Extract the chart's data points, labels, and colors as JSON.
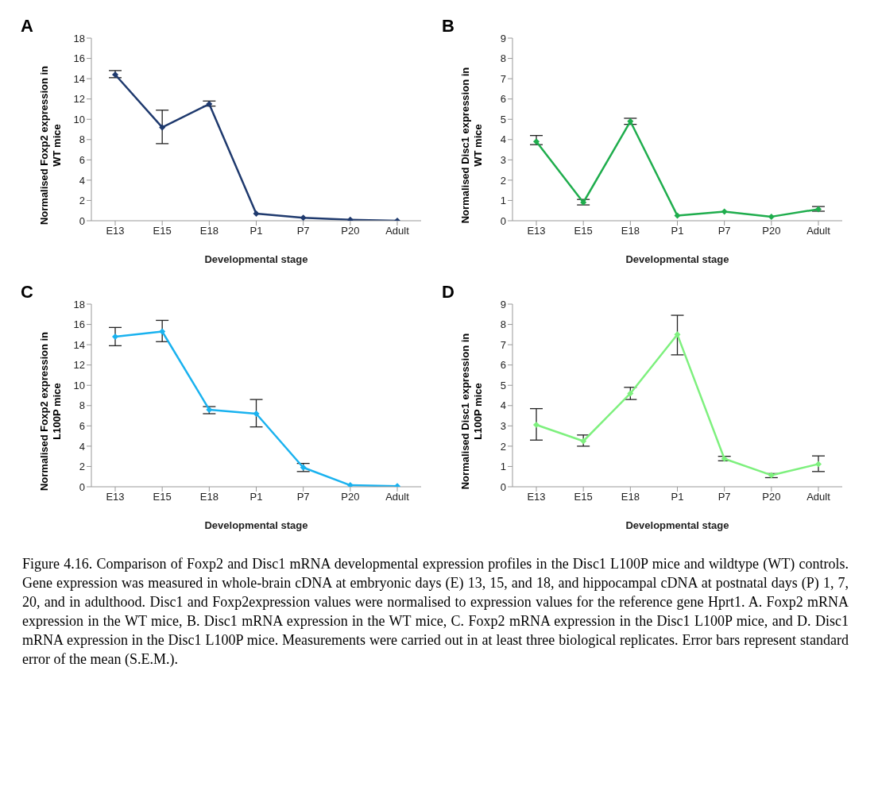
{
  "chart_data": [
    {
      "type": "line",
      "title": "A",
      "xlabel": "Developmental stage",
      "ylabel": "Normalised Foxp2 expression in WT mice",
      "categories": [
        "E13",
        "E15",
        "E18",
        "P1",
        "P7",
        "P20",
        "Adult"
      ],
      "values": [
        14.4,
        9.2,
        11.5,
        0.7,
        0.3,
        0.1,
        0
      ],
      "errors": [
        [
          14.1,
          14.8
        ],
        [
          7.6,
          10.9
        ],
        [
          11.3,
          11.8
        ],
        null,
        null,
        null,
        null
      ],
      "color": "#1f3a6e",
      "marker": "diamond",
      "ylim": [
        0,
        18
      ],
      "yticks": [
        0,
        2,
        4,
        6,
        8,
        10,
        12,
        14,
        16,
        18
      ],
      "grid": false
    },
    {
      "type": "line",
      "title": "B",
      "xlabel": "Developmental stage",
      "ylabel": "Normalised Disc1 expression in WT mice",
      "categories": [
        "E13",
        "E15",
        "E18",
        "P1",
        "P7",
        "P20",
        "Adult"
      ],
      "values": [
        3.9,
        0.9,
        4.9,
        0.25,
        0.45,
        0.2,
        0.57
      ],
      "errors": [
        [
          3.75,
          4.2
        ],
        [
          0.78,
          1.05
        ],
        [
          4.75,
          5.05
        ],
        null,
        null,
        null,
        [
          0.47,
          0.7
        ]
      ],
      "color": "#1fad4d",
      "marker": "diamond",
      "ylim": [
        0,
        9
      ],
      "yticks": [
        0,
        1,
        2,
        3,
        4,
        5,
        6,
        7,
        8,
        9
      ],
      "grid": false
    },
    {
      "type": "line",
      "title": "C",
      "xlabel": "Developmental stage",
      "ylabel": "Normalised Foxp2 expression in L100P mice",
      "categories": [
        "E13",
        "E15",
        "E18",
        "P1",
        "P7",
        "P20",
        "Adult"
      ],
      "values": [
        14.8,
        15.3,
        7.6,
        7.2,
        1.9,
        0.15,
        0.05
      ],
      "errors": [
        [
          13.9,
          15.7
        ],
        [
          14.3,
          16.4
        ],
        [
          7.2,
          7.9
        ],
        [
          5.9,
          8.6
        ],
        [
          1.5,
          2.3
        ],
        null,
        null
      ],
      "color": "#1ab2ef",
      "marker": "diamond",
      "ylim": [
        0,
        18
      ],
      "yticks": [
        0,
        2,
        4,
        6,
        8,
        10,
        12,
        14,
        16,
        18
      ],
      "grid": false
    },
    {
      "type": "line",
      "title": "D",
      "xlabel": "Developmental stage",
      "ylabel": "Normalised Disc1 expression in L100P mice",
      "categories": [
        "E13",
        "E15",
        "E18",
        "P1",
        "P7",
        "P20",
        "Adult"
      ],
      "values": [
        3.05,
        2.25,
        4.6,
        7.5,
        1.38,
        0.57,
        1.12
      ],
      "errors": [
        [
          2.3,
          3.85
        ],
        [
          2.0,
          2.55
        ],
        [
          4.3,
          4.9
        ],
        [
          6.5,
          8.45
        ],
        [
          1.28,
          1.5
        ],
        [
          0.45,
          0.65
        ],
        [
          0.75,
          1.52
        ]
      ],
      "color": "#7ef07e",
      "marker": "diamond",
      "ylim": [
        0,
        9
      ],
      "yticks": [
        0,
        1,
        2,
        3,
        4,
        5,
        6,
        7,
        8,
        9
      ],
      "grid": false
    },
    {
      "type": "other",
      "annotations": [
        "Figure 4.16. Comparison of Foxp2 and Disc1 mRNA developmental expression profiles in the Disc1 L100P mice and wildtype (WT) controls. Gene expression was measured in whole-brain cDNA at embryonic days (E) 13, 15, and 18, and hippocampal cDNA at postnatal days (P) 1, 7, 20, and in adulthood. Disc1 and Foxp2expression values were normalised to expression values for the reference gene Hprt1. A. Foxp2 mRNA expression in the WT mice, B. Disc1 mRNA expression in the WT mice, C. Foxp2 mRNA expression in the Disc1 L100P mice, and D. Disc1 mRNA expression in the Disc1 L100P mice. Measurements were carried out in at least three biological replicates. Error bars represent standard error of the mean (S.E.M.)."
      ]
    }
  ]
}
